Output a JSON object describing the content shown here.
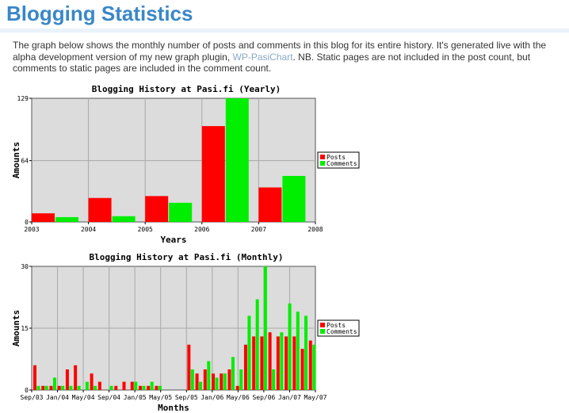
{
  "page": {
    "title": "Blogging Statistics",
    "intro_text_1": "The graph below shows the monthly number of posts and comments in this blog for its entire history. It's generated live with the alpha development version of my new graph plugin, ",
    "intro_link": "WP-PasiChart",
    "intro_text_2": ". NB. Static pages are not included in the post count, but comments to static pages are included in the comment count."
  },
  "colors": {
    "posts": "#ff0000",
    "comments": "#00ee00",
    "plot_bg": "#dcdcdc",
    "grid": "#a8a8a8"
  },
  "chart_data": [
    {
      "type": "bar",
      "title": "Blogging History at Pasi.fi (Yearly)",
      "xlabel": "Years",
      "ylabel": "Amounts",
      "ylim": [
        0,
        129
      ],
      "yticks": [
        0,
        64,
        129
      ],
      "categories": [
        "2003",
        "2004",
        "2005",
        "2006",
        "2007"
      ],
      "xticks": [
        "2003",
        "2004",
        "2005",
        "2006",
        "2007",
        "2008"
      ],
      "series": [
        {
          "name": "Posts",
          "values": [
            9,
            25,
            27,
            100,
            36
          ]
        },
        {
          "name": "Comments",
          "values": [
            5,
            6,
            20,
            129,
            48
          ]
        }
      ],
      "legend_position": "right",
      "grid": true
    },
    {
      "type": "bar",
      "title": "Blogging History at Pasi.fi (Monthly)",
      "xlabel": "Months",
      "ylabel": "Amounts",
      "ylim": [
        0,
        30
      ],
      "yticks": [
        0,
        15,
        30
      ],
      "xticks": [
        "Sep/03",
        "Jan/04",
        "May/04",
        "Sep/04",
        "Jan/05",
        "May/05",
        "Sep/05",
        "Jan/06",
        "May/06",
        "Sep/06",
        "Jan/07",
        "May/07"
      ],
      "series": [
        {
          "name": "Posts",
          "values": [
            6,
            1,
            1,
            1,
            5,
            6,
            0,
            4,
            2,
            0,
            1,
            2,
            2,
            1,
            1,
            1,
            0,
            0,
            0,
            11,
            4,
            5,
            4,
            4,
            5,
            1,
            11,
            13,
            13,
            14,
            13,
            13,
            13,
            10,
            12
          ]
        },
        {
          "name": "Comments",
          "values": [
            1,
            1,
            3,
            1,
            1,
            1,
            2,
            1,
            0,
            1,
            0,
            0,
            2,
            1,
            2,
            1,
            0,
            0,
            0,
            5,
            2,
            7,
            3,
            4,
            8,
            5,
            18,
            22,
            30,
            5,
            14,
            21,
            19,
            18,
            11
          ]
        }
      ],
      "legend_position": "right",
      "grid": true
    }
  ]
}
